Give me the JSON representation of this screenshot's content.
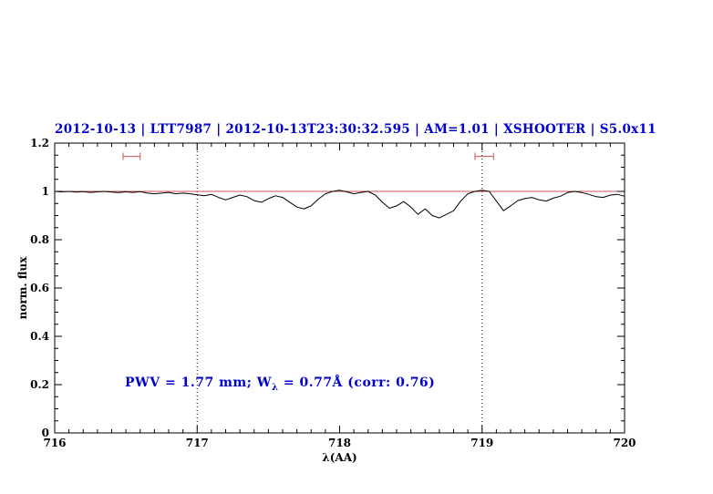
{
  "header": {
    "title": "2012-10-13 | LTT7987 | 2012-10-13T23:30:32.595 | AM=1.01 | XSHOOTER | S5.0x11"
  },
  "annotation": {
    "prefix": "PWV = 1.77 mm; W",
    "subscript": "λ",
    "suffix": " = 0.77Å (corr: 0.76)"
  },
  "colors": {
    "title_text": "#0000cd",
    "annotation_text": "#0000cd",
    "spectrum_line": "#000000",
    "continuum_line": "#d05050",
    "range_marker": "#d05050",
    "axis": "#000000",
    "background": "#ffffff"
  },
  "chart_data": {
    "type": "line",
    "title": "2012-10-13 | LTT7987 | 2012-10-13T23:30:32.595 | AM=1.01 | XSHOOTER | S5.0x11",
    "xlabel": "λ(AA)",
    "ylabel": "norm. flux",
    "xlim": [
      716,
      720
    ],
    "ylim": [
      0,
      1.2
    ],
    "grid": false,
    "legend": "none",
    "xticks": {
      "values": [
        716,
        717,
        718,
        719,
        720
      ],
      "labels": [
        "716",
        "717",
        "718",
        "719",
        "720"
      ]
    },
    "yticks": {
      "values": [
        0,
        0.2,
        0.4,
        0.6,
        0.8,
        1,
        1.2
      ],
      "labels": [
        "0",
        "0.2",
        "0.4",
        "0.6",
        "0.8",
        "1",
        "1.2"
      ]
    },
    "x_minor_step": 0.1,
    "y_minor_step": 0.05,
    "vlines": [
      717,
      719
    ],
    "continuum": {
      "y": 1.0,
      "x_start": 716,
      "x_end": 720
    },
    "range_markers": [
      {
        "x_start": 716.48,
        "x_end": 716.6,
        "y": 1.145
      },
      {
        "x_start": 718.95,
        "x_end": 719.08,
        "y": 1.145
      }
    ],
    "annotation": {
      "text": "PWV = 1.77 mm; Wλ = 0.77Å (corr: 0.76)",
      "x": 716.5,
      "y": 0.2
    },
    "series": [
      {
        "name": "spectrum",
        "x": [
          716.0,
          716.05,
          716.1,
          716.15,
          716.2,
          716.25,
          716.3,
          716.35,
          716.4,
          716.45,
          716.5,
          716.55,
          716.6,
          716.65,
          716.7,
          716.75,
          716.8,
          716.85,
          716.9,
          716.95,
          717.0,
          717.05,
          717.1,
          717.15,
          717.2,
          717.25,
          717.3,
          717.35,
          717.4,
          717.45,
          717.5,
          717.55,
          717.6,
          717.65,
          717.7,
          717.75,
          717.8,
          717.85,
          717.9,
          717.95,
          718.0,
          718.05,
          718.1,
          718.15,
          718.2,
          718.25,
          718.3,
          718.35,
          718.4,
          718.45,
          718.5,
          718.55,
          718.6,
          718.65,
          718.7,
          718.75,
          718.8,
          718.85,
          718.9,
          718.95,
          719.0,
          719.05,
          719.1,
          719.15,
          719.2,
          719.25,
          719.3,
          719.35,
          719.4,
          719.45,
          719.5,
          719.55,
          719.6,
          719.65,
          719.7,
          719.75,
          719.8,
          719.85,
          719.9,
          719.95,
          720.0
        ],
        "y": [
          1.0,
          0.998,
          1.0,
          0.997,
          0.999,
          0.996,
          0.998,
          1.0,
          0.997,
          0.995,
          0.998,
          0.996,
          0.999,
          0.993,
          0.99,
          0.993,
          0.996,
          0.99,
          0.993,
          0.99,
          0.986,
          0.982,
          0.988,
          0.975,
          0.965,
          0.975,
          0.985,
          0.978,
          0.962,
          0.955,
          0.97,
          0.982,
          0.975,
          0.955,
          0.935,
          0.928,
          0.94,
          0.968,
          0.99,
          1.0,
          1.005,
          0.998,
          0.99,
          0.996,
          1.0,
          0.985,
          0.955,
          0.93,
          0.94,
          0.958,
          0.935,
          0.905,
          0.928,
          0.9,
          0.89,
          0.905,
          0.92,
          0.96,
          0.99,
          1.0,
          1.005,
          1.0,
          0.96,
          0.92,
          0.94,
          0.962,
          0.97,
          0.975,
          0.965,
          0.96,
          0.972,
          0.98,
          0.995,
          1.0,
          0.995,
          0.988,
          0.978,
          0.975,
          0.985,
          0.988,
          0.98
        ]
      }
    ]
  }
}
